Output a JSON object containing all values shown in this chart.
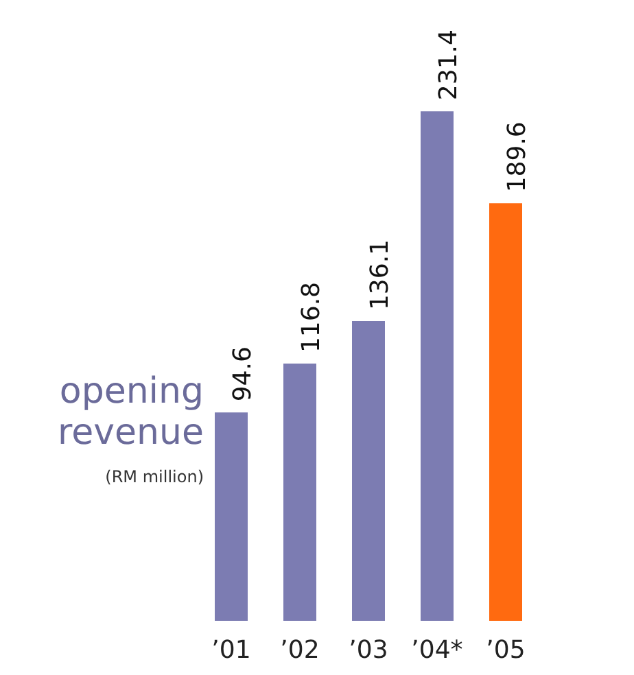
{
  "chart_data": {
    "type": "bar",
    "title": "opening revenue",
    "subtitle": "(RM million)",
    "categories": [
      "’01",
      "’02",
      "’03",
      "’04*",
      "’05"
    ],
    "values": [
      94.6,
      116.8,
      136.1,
      231.4,
      189.6
    ],
    "colors": [
      "#7c7cb2",
      "#7c7cb2",
      "#7c7cb2",
      "#7c7cb2",
      "#ff6a10"
    ],
    "data_labels": true,
    "grid": false
  }
}
